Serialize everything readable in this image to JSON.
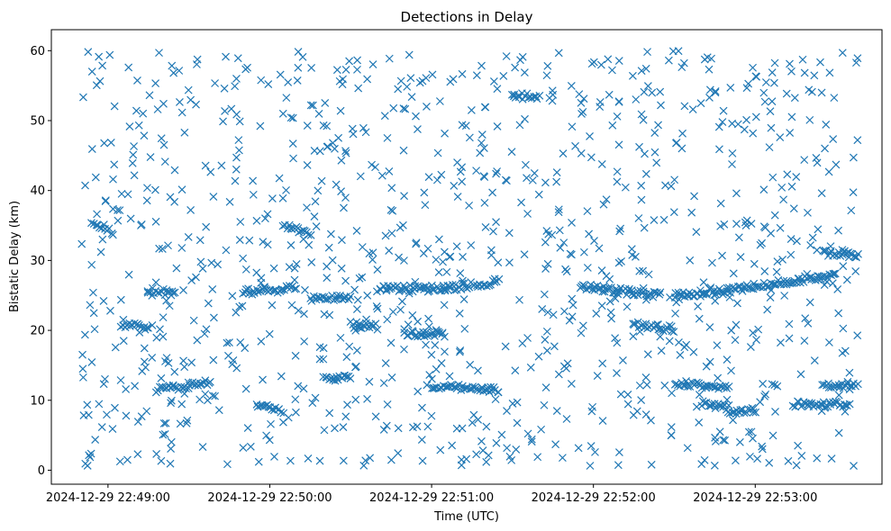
{
  "chart_data": {
    "type": "scatter",
    "title": "Detections in Delay",
    "xlabel": "Time (UTC)",
    "ylabel": "Bistatic Delay (km)",
    "marker": "x",
    "color": "#1f77b4",
    "grid": false,
    "x_range": [
      "2024-12-29 22:48:39",
      "2024-12-29 22:53:47"
    ],
    "ylim": [
      -2,
      63
    ],
    "x_ticks": [
      "2024-12-29 22:49:00",
      "2024-12-29 22:50:00",
      "2024-12-29 22:51:00",
      "2024-12-29 22:52:00",
      "2024-12-29 22:53:00"
    ],
    "y_ticks": [
      0,
      10,
      20,
      30,
      40,
      50,
      60
    ],
    "x_start": "2024-12-29 22:48:50",
    "x_end": "2024-12-29 22:53:38",
    "y_min": 0.5,
    "y_max": 60,
    "n_background": 1050,
    "tracks": [
      {
        "from": "2024-12-29 22:48:55",
        "to": "2024-12-29 22:49:02",
        "delay_from": 35.5,
        "delay_to": 34.0
      },
      {
        "from": "2024-12-29 22:49:05",
        "to": "2024-12-29 22:49:15",
        "delay_from": 20.8,
        "delay_to": 20.5
      },
      {
        "from": "2024-12-29 22:49:15",
        "to": "2024-12-29 22:49:25",
        "delay_from": 25.8,
        "delay_to": 25.2
      },
      {
        "from": "2024-12-29 22:49:18",
        "to": "2024-12-29 22:49:38",
        "delay_from": 11.5,
        "delay_to": 12.5
      },
      {
        "from": "2024-12-29 22:49:50",
        "to": "2024-12-29 22:50:10",
        "delay_from": 25.5,
        "delay_to": 26.0
      },
      {
        "from": "2024-12-29 22:49:55",
        "to": "2024-12-29 22:50:05",
        "delay_from": 9.5,
        "delay_to": 8.5
      },
      {
        "from": "2024-12-29 22:50:05",
        "to": "2024-12-29 22:50:15",
        "delay_from": 35.0,
        "delay_to": 34.0
      },
      {
        "from": "2024-12-29 22:50:15",
        "to": "2024-12-29 22:50:30",
        "delay_from": 24.5,
        "delay_to": 24.8
      },
      {
        "from": "2024-12-29 22:50:20",
        "to": "2024-12-29 22:50:30",
        "delay_from": 13.0,
        "delay_to": 13.5
      },
      {
        "from": "2024-12-29 22:50:30",
        "to": "2024-12-29 22:50:40",
        "delay_from": 20.8,
        "delay_to": 20.5
      },
      {
        "from": "2024-12-29 22:50:40",
        "to": "2024-12-29 22:51:05",
        "delay_from": 26.0,
        "delay_to": 26.0
      },
      {
        "from": "2024-12-29 22:50:50",
        "to": "2024-12-29 22:51:05",
        "delay_from": 19.5,
        "delay_to": 19.5
      },
      {
        "from": "2024-12-29 22:51:00",
        "to": "2024-12-29 22:51:25",
        "delay_from": 12.0,
        "delay_to": 11.5
      },
      {
        "from": "2024-12-29 22:51:05",
        "to": "2024-12-29 22:51:25",
        "delay_from": 26.0,
        "delay_to": 27.0
      },
      {
        "from": "2024-12-29 22:51:30",
        "to": "2024-12-29 22:51:40",
        "delay_from": 53.5,
        "delay_to": 53.5
      },
      {
        "from": "2024-12-29 22:51:55",
        "to": "2024-12-29 22:52:25",
        "delay_from": 26.3,
        "delay_to": 25.0
      },
      {
        "from": "2024-12-29 22:52:15",
        "to": "2024-12-29 22:52:30",
        "delay_from": 20.8,
        "delay_to": 20.2
      },
      {
        "from": "2024-12-29 22:52:30",
        "to": "2024-12-29 22:52:55",
        "delay_from": 25.0,
        "delay_to": 26.0
      },
      {
        "from": "2024-12-29 22:52:30",
        "to": "2024-12-29 22:52:50",
        "delay_from": 12.5,
        "delay_to": 11.8
      },
      {
        "from": "2024-12-29 22:52:40",
        "to": "2024-12-29 22:52:50",
        "delay_from": 9.5,
        "delay_to": 9.0
      },
      {
        "from": "2024-12-29 22:52:55",
        "to": "2024-12-29 22:53:30",
        "delay_from": 26.0,
        "delay_to": 28.0
      },
      {
        "from": "2024-12-29 22:52:50",
        "to": "2024-12-29 22:53:00",
        "delay_from": 8.5,
        "delay_to": 8.5
      },
      {
        "from": "2024-12-29 22:53:15",
        "to": "2024-12-29 22:53:35",
        "delay_from": 9.5,
        "delay_to": 9.5
      },
      {
        "from": "2024-12-29 22:53:25",
        "to": "2024-12-29 22:53:38",
        "delay_from": 12.0,
        "delay_to": 12.0
      },
      {
        "from": "2024-12-29 22:53:25",
        "to": "2024-12-29 22:53:38",
        "delay_from": 31.0,
        "delay_to": 31.0
      }
    ]
  }
}
